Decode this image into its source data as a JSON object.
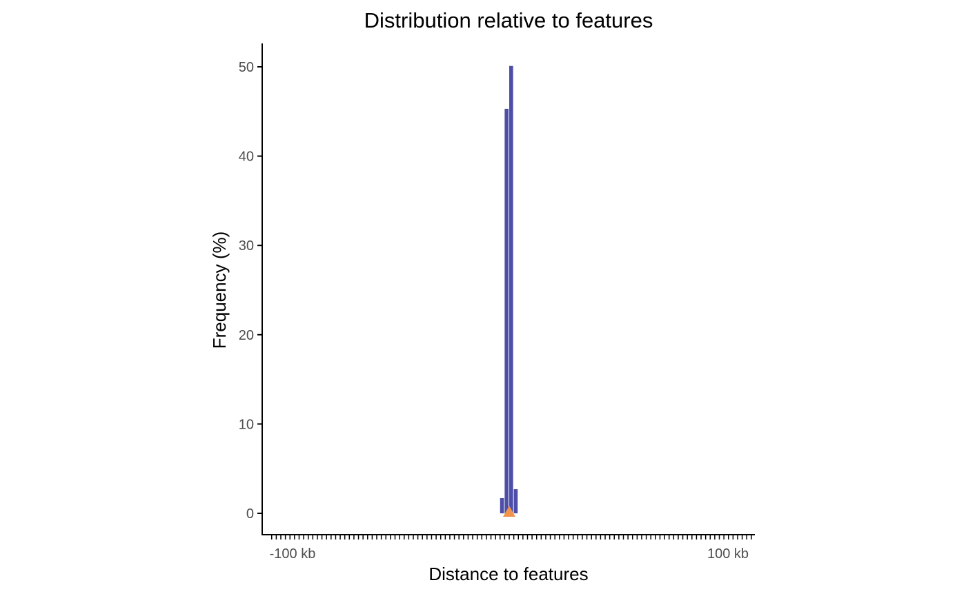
{
  "chart_data": {
    "type": "bar",
    "title": "Distribution relative to features",
    "xlabel": "Distance to features",
    "ylabel": "Frequency (%)",
    "x_unit": "kb",
    "x_tick_labels": [
      "-100 kb",
      "100 kb"
    ],
    "x_tick_values": [
      -100,
      100
    ],
    "xlim": [
      -100,
      100
    ],
    "ylim": [
      0,
      50
    ],
    "y_ticks": [
      0,
      10,
      20,
      30,
      40,
      50
    ],
    "bin_width_kb": 2,
    "bins": [
      {
        "x_start": -4,
        "x_end": -2,
        "value": 1.7
      },
      {
        "x_start": -2,
        "x_end": 0,
        "value": 45.3
      },
      {
        "x_start": 0,
        "x_end": 2,
        "value": 50.1
      },
      {
        "x_start": 2,
        "x_end": 4,
        "value": 2.7
      }
    ],
    "feature_marker": {
      "x": 0,
      "y": 0,
      "shape": "triangle"
    },
    "colors": {
      "bars": "#4d4ea8",
      "marker": "#f0944d",
      "axis": "#000000"
    },
    "grid": false,
    "legend": "none"
  }
}
